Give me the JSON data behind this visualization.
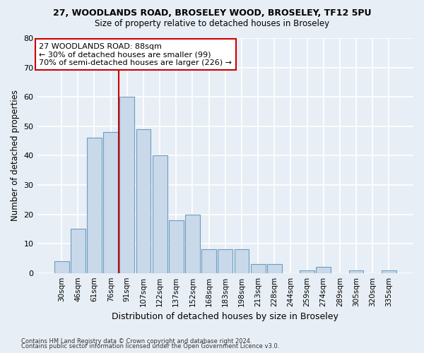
{
  "title1": "27, WOODLANDS ROAD, BROSELEY WOOD, BROSELEY, TF12 5PU",
  "title2": "Size of property relative to detached houses in Broseley",
  "xlabel": "Distribution of detached houses by size in Broseley",
  "ylabel": "Number of detached properties",
  "bar_labels": [
    "30sqm",
    "46sqm",
    "61sqm",
    "76sqm",
    "91sqm",
    "107sqm",
    "122sqm",
    "137sqm",
    "152sqm",
    "168sqm",
    "183sqm",
    "198sqm",
    "213sqm",
    "228sqm",
    "244sqm",
    "259sqm",
    "274sqm",
    "289sqm",
    "305sqm",
    "320sqm",
    "335sqm"
  ],
  "bar_values": [
    4,
    15,
    46,
    48,
    60,
    49,
    40,
    18,
    20,
    8,
    8,
    8,
    3,
    3,
    0,
    1,
    2,
    0,
    1,
    0,
    1
  ],
  "bar_color": "#c9d9ea",
  "bar_edgecolor": "#6a9ec0",
  "vline_color": "#cc0000",
  "annotation_title": "27 WOODLANDS ROAD: 88sqm",
  "annotation_line1": "← 30% of detached houses are smaller (99)",
  "annotation_line2": "70% of semi-detached houses are larger (226) →",
  "annotation_box_facecolor": "#ffffff",
  "annotation_box_edgecolor": "#cc0000",
  "footnote1": "Contains HM Land Registry data © Crown copyright and database right 2024.",
  "footnote2": "Contains public sector information licensed under the Open Government Licence v3.0.",
  "ylim": [
    0,
    80
  ],
  "yticks": [
    0,
    10,
    20,
    30,
    40,
    50,
    60,
    70,
    80
  ],
  "bg_color": "#e8eef5",
  "grid_color": "#ffffff"
}
